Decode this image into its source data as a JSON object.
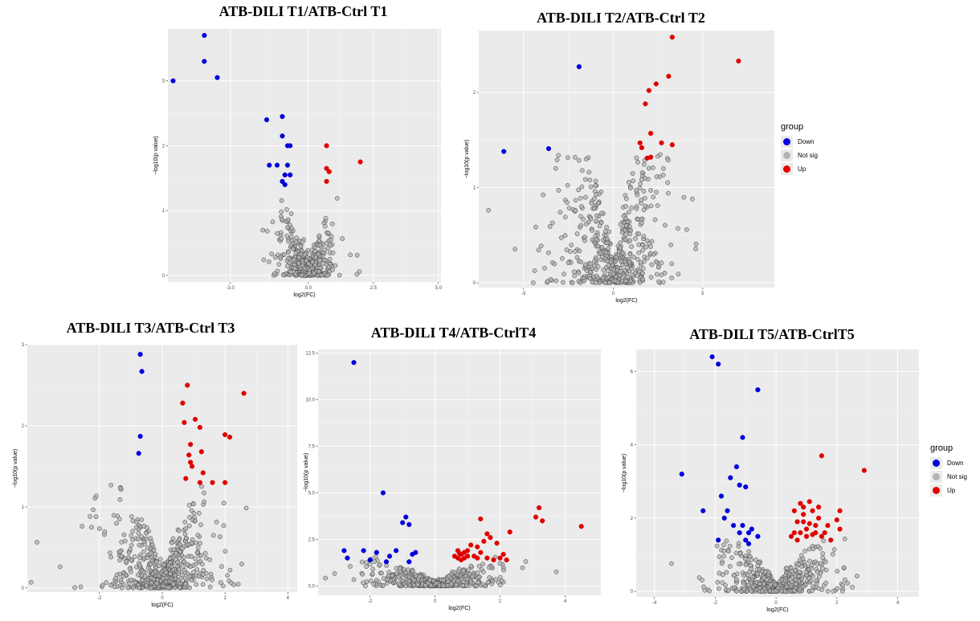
{
  "legend": {
    "title": "group",
    "items": [
      {
        "label": "Down",
        "color": "#0000dd"
      },
      {
        "label": "Not sig",
        "color": "#b3b3b3"
      },
      {
        "label": "Up",
        "color": "#e00000"
      }
    ]
  },
  "chart_data": [
    {
      "type": "scatter",
      "title": "ATB-DILI T1/ATB-Ctrl T1",
      "xlabel": "log2(FC)",
      "ylabel": "−log10(p value)",
      "xlim": [
        -5.4,
        5.1
      ],
      "ylim": [
        -0.1,
        3.8
      ],
      "xticks": [
        -3.0,
        0.0,
        2.5,
        5.0
      ],
      "xtick_labels": [
        "-3.0",
        "0.0",
        "2.5",
        "5.0"
      ],
      "yticks": [
        0,
        1,
        2,
        3
      ],
      "yticks_labels": [
        "0",
        "1",
        "2",
        "3"
      ],
      "grid": true,
      "series": [
        {
          "name": "Down",
          "color": "#0000dd",
          "points": [
            [
              -5.2,
              3.0
            ],
            [
              -4.0,
              3.7
            ],
            [
              -4.0,
              3.3
            ],
            [
              -3.5,
              3.05
            ],
            [
              -1.6,
              2.4
            ],
            [
              -1.0,
              2.45
            ],
            [
              -1.0,
              2.15
            ],
            [
              -0.8,
              2.0
            ],
            [
              -0.7,
              2.0
            ],
            [
              -1.5,
              1.7
            ],
            [
              -1.2,
              1.7
            ],
            [
              -0.8,
              1.7
            ],
            [
              -0.9,
              1.55
            ],
            [
              -0.7,
              1.55
            ],
            [
              -1.0,
              1.45
            ],
            [
              -0.9,
              1.4
            ]
          ]
        },
        {
          "name": "Up",
          "color": "#e00000",
          "points": [
            [
              0.7,
              2.0
            ],
            [
              2.0,
              1.75
            ],
            [
              0.7,
              1.65
            ],
            [
              0.8,
              1.6
            ],
            [
              0.7,
              1.45
            ]
          ]
        }
      ],
      "notsig_count": 420,
      "notsig_spread": {
        "sx": 0.55,
        "ymax": 1.35,
        "seed": 11
      }
    },
    {
      "type": "scatter",
      "title": "ATB-DILI T2/ATB-Ctrl T2",
      "xlabel": "log2(FC)",
      "ylabel": "−log10(p value)",
      "xlim": [
        -7.5,
        9.0
      ],
      "ylim": [
        -0.05,
        2.65
      ],
      "xticks": [
        -5,
        0,
        5
      ],
      "xtick_labels": [
        "-5",
        "0",
        "5"
      ],
      "yticks": [
        0,
        1,
        2
      ],
      "yticks_labels": [
        "0",
        "1",
        "2"
      ],
      "grid": true,
      "series": [
        {
          "name": "Down",
          "color": "#0000dd",
          "points": [
            [
              -6.1,
              1.38
            ],
            [
              -3.6,
              1.41
            ],
            [
              -1.9,
              2.27
            ]
          ]
        },
        {
          "name": "Up",
          "color": "#e00000",
          "points": [
            [
              3.3,
              2.58
            ],
            [
              7.0,
              2.33
            ],
            [
              3.1,
              2.17
            ],
            [
              2.4,
              2.09
            ],
            [
              2.0,
              2.02
            ],
            [
              1.8,
              1.88
            ],
            [
              2.1,
              1.57
            ],
            [
              1.5,
              1.47
            ],
            [
              2.7,
              1.47
            ],
            [
              3.3,
              1.45
            ],
            [
              1.6,
              1.42
            ],
            [
              2.1,
              1.32
            ],
            [
              1.9,
              1.31
            ]
          ]
        }
      ],
      "notsig_count": 520,
      "notsig_spread": {
        "sx": 1.4,
        "ymax": 1.35,
        "seed": 23
      }
    },
    {
      "type": "scatter",
      "title": "ATB-DILI T3/ATB-Ctrl T3",
      "xlabel": "log2(FC)",
      "ylabel": "−log10(p value)",
      "xlim": [
        -4.3,
        4.3
      ],
      "ylim": [
        -0.05,
        3.0
      ],
      "xticks": [
        -2,
        0,
        2,
        4
      ],
      "xtick_labels": [
        "-2",
        "0",
        "2",
        "4"
      ],
      "yticks": [
        0,
        1,
        2,
        3
      ],
      "yticks_labels": [
        "0",
        "1",
        "2",
        "3"
      ],
      "grid": true,
      "series": [
        {
          "name": "Down",
          "color": "#0000dd",
          "points": [
            [
              -0.7,
              2.88
            ],
            [
              -0.65,
              2.67
            ],
            [
              -0.7,
              1.87
            ],
            [
              -0.75,
              1.66
            ]
          ]
        },
        {
          "name": "Up",
          "color": "#e00000",
          "points": [
            [
              0.8,
              2.5
            ],
            [
              2.6,
              2.4
            ],
            [
              0.65,
              2.28
            ],
            [
              1.05,
              2.08
            ],
            [
              0.7,
              2.04
            ],
            [
              1.2,
              1.98
            ],
            [
              2.0,
              1.89
            ],
            [
              2.15,
              1.86
            ],
            [
              0.9,
              1.77
            ],
            [
              0.85,
              1.64
            ],
            [
              1.25,
              1.68
            ],
            [
              0.9,
              1.55
            ],
            [
              0.95,
              1.5
            ],
            [
              1.3,
              1.42
            ],
            [
              0.75,
              1.35
            ],
            [
              1.2,
              1.3
            ],
            [
              1.6,
              1.3
            ],
            [
              2.0,
              1.3
            ]
          ]
        }
      ],
      "notsig_count": 560,
      "notsig_spread": {
        "sx": 0.9,
        "ymax": 1.3,
        "seed": 37
      }
    },
    {
      "type": "scatter",
      "title": "ATB-DILI T4/ATB-CtrlT4",
      "xlabel": "log2(FC)",
      "ylabel": "−log10(p value)",
      "xlim": [
        -3.6,
        5.1
      ],
      "ylim": [
        -0.5,
        12.7
      ],
      "xticks": [
        -2,
        0,
        2,
        4
      ],
      "xtick_labels": [
        "-2",
        "0",
        "2",
        "4"
      ],
      "yticks": [
        0,
        2.5,
        5,
        7.5,
        10,
        12.5
      ],
      "yticks_labels": [
        "0.0",
        "2.5",
        "5.0",
        "7.5",
        "10.0",
        "12.5"
      ],
      "grid": true,
      "series": [
        {
          "name": "Down",
          "color": "#0000dd",
          "points": [
            [
              -2.5,
              12.0
            ],
            [
              -1.6,
              5.0
            ],
            [
              -0.9,
              3.7
            ],
            [
              -1.0,
              3.4
            ],
            [
              -0.8,
              3.3
            ],
            [
              -2.8,
              1.9
            ],
            [
              -2.2,
              1.9
            ],
            [
              -1.8,
              1.8
            ],
            [
              -1.2,
              1.9
            ],
            [
              -1.4,
              1.6
            ],
            [
              -2.0,
              1.4
            ],
            [
              -2.7,
              1.5
            ],
            [
              -0.7,
              1.7
            ],
            [
              -0.6,
              1.8
            ],
            [
              -1.5,
              1.3
            ],
            [
              -0.8,
              1.3
            ]
          ]
        },
        {
          "name": "Up",
          "color": "#e00000",
          "points": [
            [
              3.2,
              4.2
            ],
            [
              3.1,
              3.7
            ],
            [
              3.3,
              3.5
            ],
            [
              4.5,
              3.2
            ],
            [
              1.4,
              3.6
            ],
            [
              2.3,
              2.9
            ],
            [
              1.6,
              2.8
            ],
            [
              1.7,
              2.6
            ],
            [
              1.5,
              2.4
            ],
            [
              1.9,
              2.3
            ],
            [
              1.3,
              2.1
            ],
            [
              1.1,
              2.2
            ],
            [
              1.4,
              1.8
            ],
            [
              1.0,
              1.9
            ],
            [
              0.9,
              1.8
            ],
            [
              0.7,
              1.9
            ],
            [
              0.8,
              1.7
            ],
            [
              1.2,
              1.6
            ],
            [
              0.9,
              1.5
            ],
            [
              1.0,
              1.6
            ],
            [
              0.7,
              1.5
            ],
            [
              1.6,
              1.5
            ],
            [
              2.0,
              1.5
            ],
            [
              2.2,
              1.4
            ],
            [
              2.1,
              1.7
            ],
            [
              1.8,
              1.4
            ],
            [
              0.8,
              1.4
            ],
            [
              1.3,
              1.5
            ],
            [
              0.6,
              1.6
            ],
            [
              0.75,
              1.75
            ]
          ]
        }
      ],
      "notsig_count": 460,
      "notsig_spread": {
        "sx": 0.95,
        "ymax": 1.6,
        "seed": 53
      }
    },
    {
      "type": "scatter",
      "title": "ATB-DILI T5/ATB-CtrlT5",
      "xlabel": "log2(FC)",
      "ylabel": "−log10(p value)",
      "xlim": [
        -4.6,
        4.7
      ],
      "ylim": [
        -0.15,
        6.6
      ],
      "xticks": [
        -4,
        -2,
        0,
        2,
        4
      ],
      "xtick_labels": [
        "-4",
        "-2",
        "0",
        "2",
        "4"
      ],
      "yticks": [
        0,
        2,
        4,
        6
      ],
      "yticks_labels": [
        "0",
        "2",
        "4",
        "6"
      ],
      "grid": true,
      "series": [
        {
          "name": "Down",
          "color": "#0000dd",
          "points": [
            [
              -2.1,
              6.4
            ],
            [
              -1.9,
              6.2
            ],
            [
              -0.6,
              5.5
            ],
            [
              -1.1,
              4.2
            ],
            [
              -3.1,
              3.2
            ],
            [
              -1.3,
              3.4
            ],
            [
              -1.5,
              3.1
            ],
            [
              -1.2,
              2.9
            ],
            [
              -1.0,
              2.85
            ],
            [
              -1.8,
              2.6
            ],
            [
              -2.4,
              2.2
            ],
            [
              -1.6,
              2.2
            ],
            [
              -1.7,
              2.0
            ],
            [
              -1.4,
              1.8
            ],
            [
              -1.1,
              1.8
            ],
            [
              -1.2,
              1.6
            ],
            [
              -0.9,
              1.6
            ],
            [
              -1.0,
              1.4
            ],
            [
              -0.8,
              1.7
            ],
            [
              -1.9,
              1.4
            ],
            [
              -0.9,
              1.3
            ],
            [
              -0.6,
              1.5
            ]
          ]
        },
        {
          "name": "Up",
          "color": "#e00000",
          "points": [
            [
              1.5,
              3.7
            ],
            [
              2.9,
              3.3
            ],
            [
              0.8,
              2.4
            ],
            [
              1.1,
              2.45
            ],
            [
              2.1,
              2.2
            ],
            [
              0.6,
              2.2
            ],
            [
              0.9,
              2.1
            ],
            [
              1.2,
              2.2
            ],
            [
              1.4,
              2.0
            ],
            [
              0.7,
              1.9
            ],
            [
              0.9,
              1.9
            ],
            [
              1.1,
              1.85
            ],
            [
              1.3,
              1.8
            ],
            [
              1.7,
              1.8
            ],
            [
              2.0,
              1.95
            ],
            [
              2.1,
              1.7
            ],
            [
              0.6,
              1.6
            ],
            [
              0.8,
              1.6
            ],
            [
              1.0,
              1.5
            ],
            [
              1.2,
              1.55
            ],
            [
              1.5,
              1.5
            ],
            [
              1.8,
              1.4
            ],
            [
              0.5,
              1.5
            ],
            [
              0.7,
              1.4
            ],
            [
              1.0,
              1.7
            ],
            [
              1.3,
              1.6
            ],
            [
              1.6,
              1.6
            ],
            [
              0.9,
              2.3
            ],
            [
              1.4,
              2.3
            ]
          ]
        }
      ],
      "notsig_count": 470,
      "notsig_spread": {
        "sx": 0.85,
        "ymax": 1.45,
        "seed": 71
      }
    }
  ]
}
